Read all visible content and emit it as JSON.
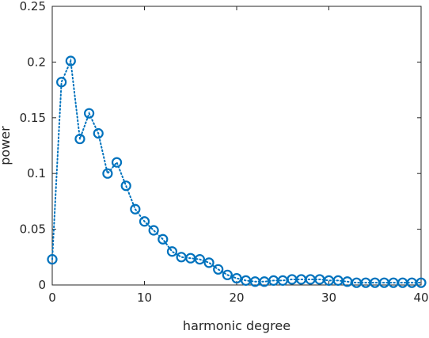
{
  "chart_data": {
    "type": "line",
    "title": "",
    "xlabel": "harmonic degree",
    "ylabel": "power",
    "xlim": [
      0,
      40
    ],
    "ylim": [
      0,
      0.25
    ],
    "xticks": [
      0,
      10,
      20,
      30,
      40
    ],
    "xtick_labels": [
      "0",
      "10",
      "20",
      "30",
      "40"
    ],
    "yticks": [
      0,
      0.05,
      0.1,
      0.15,
      0.2,
      0.25
    ],
    "ytick_labels": [
      "0",
      "0.05",
      "0.1",
      "0.15",
      "0.2",
      "0.25"
    ],
    "grid": false,
    "line_style": "dotted",
    "marker": "circle",
    "colors": {
      "series": "#0072BD",
      "axes": "#262626",
      "background": "#ffffff"
    },
    "series": [
      {
        "x": [
          0,
          1,
          2,
          3,
          4,
          5,
          6,
          7,
          8,
          9,
          10,
          11,
          12,
          13,
          14,
          15,
          16,
          17,
          18,
          19,
          20,
          21,
          22,
          23,
          24,
          25,
          26,
          27,
          28,
          29,
          30,
          31,
          32,
          33,
          34,
          35,
          36,
          37,
          38,
          39,
          40
        ],
        "values": [
          0.023,
          0.182,
          0.201,
          0.131,
          0.154,
          0.136,
          0.1,
          0.11,
          0.089,
          0.068,
          0.057,
          0.049,
          0.041,
          0.03,
          0.025,
          0.024,
          0.023,
          0.02,
          0.014,
          0.009,
          0.006,
          0.004,
          0.003,
          0.003,
          0.004,
          0.004,
          0.005,
          0.005,
          0.005,
          0.005,
          0.004,
          0.004,
          0.003,
          0.002,
          0.002,
          0.002,
          0.002,
          0.002,
          0.002,
          0.002,
          0.002
        ]
      }
    ]
  }
}
